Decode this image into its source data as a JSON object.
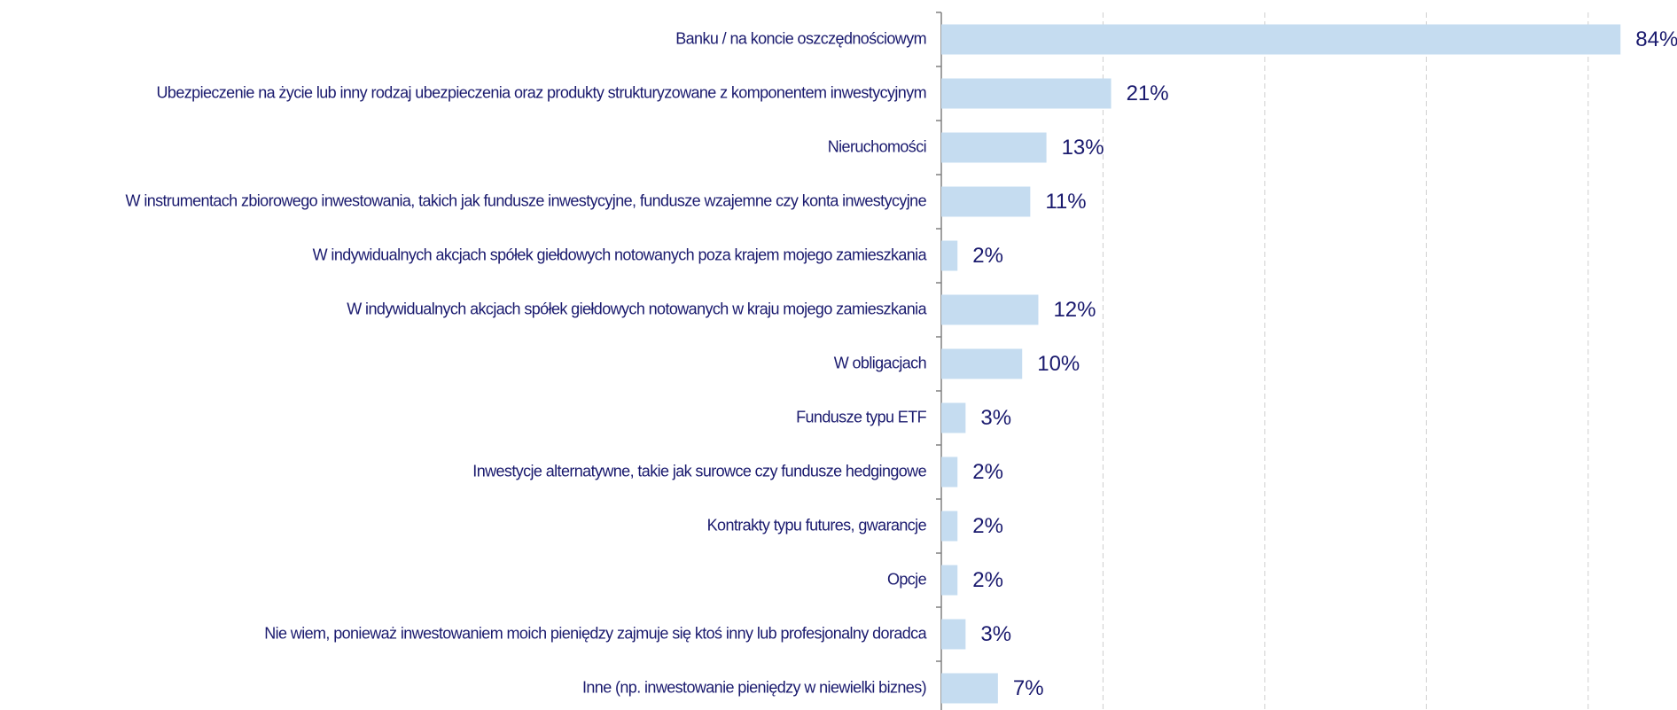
{
  "chart_data": {
    "type": "bar",
    "orientation": "horizontal",
    "categories": [
      "Banku / na koncie oszczędnościowym",
      "Ubezpieczenie na życie lub inny rodzaj ubezpieczenia oraz produkty strukturyzowane z komponentem inwestycyjnym",
      "Nieruchomości",
      "W instrumentach zbiorowego inwestowania, takich jak fundusze inwestycyjne, fundusze wzajemne czy konta inwestycyjne",
      "W indywidualnych akcjach spółek giełdowych notowanych poza krajem mojego zamieszkania",
      "W indywidualnych akcjach spółek giełdowych notowanych w kraju mojego zamieszkania",
      "W  obligacjach",
      "Fundusze typu ETF",
      "Inwestycje alternatywne, takie jak surowce czy fundusze hedgingowe",
      "Kontrakty typu futures, gwarancje",
      "Opcje",
      "Nie wiem, ponieważ inwestowaniem moich pieniędzy zajmuje się ktoś inny lub profesjonalny doradca",
      "Inne (np. inwestowanie pieniędzy w niewielki biznes)"
    ],
    "values": [
      84,
      21,
      13,
      11,
      2,
      12,
      10,
      3,
      2,
      2,
      2,
      3,
      7
    ],
    "value_labels": [
      "84%",
      "21%",
      "13%",
      "11%",
      "2%",
      "12%",
      "10%",
      "3%",
      "2%",
      "2%",
      "2%",
      "3%",
      "7%"
    ],
    "color": "#c5dcf0",
    "xlim": [
      0,
      90
    ],
    "xticks": [
      0,
      20,
      40,
      60,
      80
    ],
    "grid": true
  }
}
